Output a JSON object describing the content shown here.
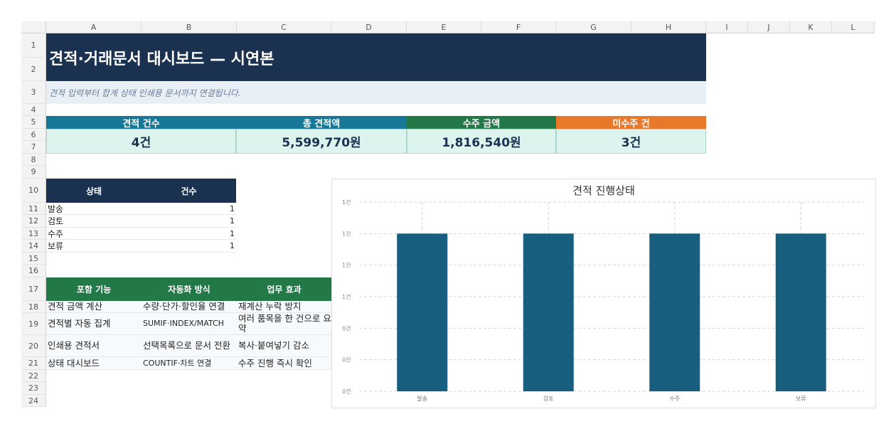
{
  "columns": [
    "A",
    "B",
    "C",
    "D",
    "E",
    "F",
    "G",
    "H",
    "I",
    "J",
    "K",
    "L"
  ],
  "rows": [
    "1",
    "2",
    "3",
    "4",
    "5",
    "6",
    "7",
    "8",
    "9",
    "10",
    "11",
    "12",
    "13",
    "14",
    "15",
    "16",
    "17",
    "18",
    "19",
    "20",
    "21",
    "22",
    "23",
    "24"
  ],
  "title": "견적·거래문서 대시보드 — 시연본",
  "subtitle": "견적 입력부터 합계 상태 인쇄용 문서까지 연결됩니다.",
  "kpis": [
    {
      "label": "견적 건수",
      "value": "4건",
      "color": "#167896"
    },
    {
      "label": "총 견적액",
      "value": "5,599,770원",
      "color": "#167896"
    },
    {
      "label": "수주 금액",
      "value": "1,816,540원",
      "color": "#227847"
    },
    {
      "label": "미수주 건",
      "value": "3건",
      "color": "#e8792b"
    }
  ],
  "status_table": {
    "headers": [
      "상태",
      "건수"
    ],
    "rows": [
      {
        "status": "발송",
        "count": "1"
      },
      {
        "status": "검토",
        "count": "1"
      },
      {
        "status": "수주",
        "count": "1"
      },
      {
        "status": "보류",
        "count": "1"
      }
    ]
  },
  "feature_table": {
    "headers": [
      "포함 기능",
      "자동화 방식",
      "업무 효과"
    ],
    "rows": [
      {
        "feature": "견적 금액 계산",
        "method": "수량·단가·할인율 연결",
        "effect": "재계산 누락 방지"
      },
      {
        "feature": "견적별 자동 집계",
        "method": "SUMIF·INDEX/MATCH",
        "effect": "여러 품목을 한 건으로 요약"
      },
      {
        "feature": "인쇄용 견적서",
        "method": "선택목록으로 문서 전환",
        "effect": "복사·붙여넣기 감소"
      },
      {
        "feature": "상태 대시보드",
        "method": "COUNTIF·차트 연결",
        "effect": "수주 진행 즉시 확인"
      }
    ]
  },
  "chart_data": {
    "type": "bar",
    "title": "견적 진행상태",
    "categories": [
      "발송",
      "검토",
      "수주",
      "보류"
    ],
    "values": [
      1,
      1,
      1,
      1
    ],
    "ylim": [
      0,
      1.2
    ],
    "ytick_labels": [
      "0건",
      "0건",
      "0건",
      "1건",
      "1건",
      "1건",
      "1건"
    ],
    "bar_color": "#175e7f",
    "grid": true
  },
  "colors": {
    "banner": "#1b3150",
    "status_header": "#1b3150",
    "feature_header": "#227847"
  }
}
